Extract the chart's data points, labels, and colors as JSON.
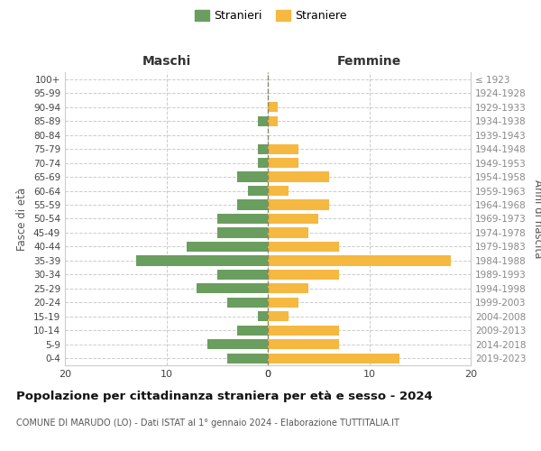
{
  "age_groups": [
    "100+",
    "95-99",
    "90-94",
    "85-89",
    "80-84",
    "75-79",
    "70-74",
    "65-69",
    "60-64",
    "55-59",
    "50-54",
    "45-49",
    "40-44",
    "35-39",
    "30-34",
    "25-29",
    "20-24",
    "15-19",
    "10-14",
    "5-9",
    "0-4"
  ],
  "birth_years": [
    "≤ 1923",
    "1924-1928",
    "1929-1933",
    "1934-1938",
    "1939-1943",
    "1944-1948",
    "1949-1953",
    "1954-1958",
    "1959-1963",
    "1964-1968",
    "1969-1973",
    "1974-1978",
    "1979-1983",
    "1984-1988",
    "1989-1993",
    "1994-1998",
    "1999-2003",
    "2004-2008",
    "2009-2013",
    "2014-2018",
    "2019-2023"
  ],
  "maschi": [
    0,
    0,
    0,
    1,
    0,
    1,
    1,
    3,
    2,
    3,
    5,
    5,
    8,
    13,
    5,
    7,
    4,
    1,
    3,
    6,
    4
  ],
  "femmine": [
    0,
    0,
    1,
    1,
    0,
    3,
    3,
    6,
    2,
    6,
    5,
    4,
    7,
    18,
    7,
    4,
    3,
    2,
    7,
    7,
    13
  ],
  "maschi_color": "#6a9e5e",
  "femmine_color": "#f5b840",
  "background_color": "#ffffff",
  "grid_color": "#cccccc",
  "title": "Popolazione per cittadinanza straniera per età e sesso - 2024",
  "subtitle": "COMUNE DI MARUDO (LO) - Dati ISTAT al 1° gennaio 2024 - Elaborazione TUTTITALIA.IT",
  "legend_stranieri": "Stranieri",
  "legend_straniere": "Straniere",
  "label_maschi": "Maschi",
  "label_femmine": "Femmine",
  "ylabel_left": "Fasce di età",
  "ylabel_right": "Anni di nascita",
  "xlim": 20
}
